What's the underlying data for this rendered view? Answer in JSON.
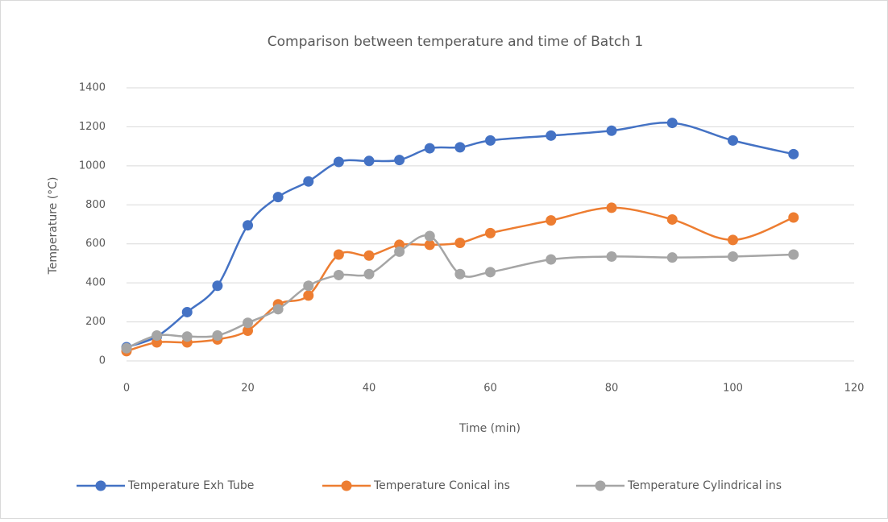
{
  "chart_data": {
    "type": "scatter-line",
    "title": "Comparison between temperature and time of Batch 1",
    "x_label": "Time (min)",
    "y_label": "Temperature (°C)",
    "xlim": [
      0,
      120
    ],
    "xticks": [
      0,
      20,
      40,
      60,
      80,
      100,
      120
    ],
    "ylim": [
      0,
      1400
    ],
    "yticks": [
      0,
      200,
      400,
      600,
      800,
      1000,
      1200,
      1400
    ],
    "grid": true,
    "legend": "bottom",
    "series": [
      {
        "name": "Temperature  Exh Tube",
        "color": "#4472c4",
        "x": [
          0,
          5,
          10,
          15,
          20,
          25,
          30,
          35,
          40,
          45,
          50,
          55,
          60,
          70,
          80,
          90,
          100,
          110
        ],
        "values": [
          70,
          125,
          250,
          385,
          695,
          840,
          920,
          1020,
          1025,
          1030,
          1090,
          1095,
          1130,
          1155,
          1180,
          1220,
          1130,
          1060
        ]
      },
      {
        "name": "Temperature  Conical ins",
        "color": "#ed7d31",
        "x": [
          0,
          5,
          10,
          15,
          20,
          25,
          30,
          35,
          40,
          45,
          50,
          55,
          60,
          70,
          80,
          90,
          100,
          110
        ],
        "values": [
          50,
          95,
          95,
          110,
          155,
          290,
          335,
          545,
          540,
          595,
          595,
          605,
          655,
          720,
          785,
          725,
          620,
          735
        ]
      },
      {
        "name": "Temperature  Cylindrical ins",
        "color": "#a5a5a5",
        "x": [
          0,
          5,
          10,
          15,
          20,
          25,
          30,
          35,
          40,
          45,
          50,
          55,
          60,
          70,
          80,
          90,
          100,
          110
        ],
        "values": [
          65,
          130,
          125,
          130,
          195,
          265,
          385,
          440,
          445,
          560,
          640,
          445,
          455,
          520,
          535,
          530,
          535,
          545
        ]
      }
    ]
  }
}
